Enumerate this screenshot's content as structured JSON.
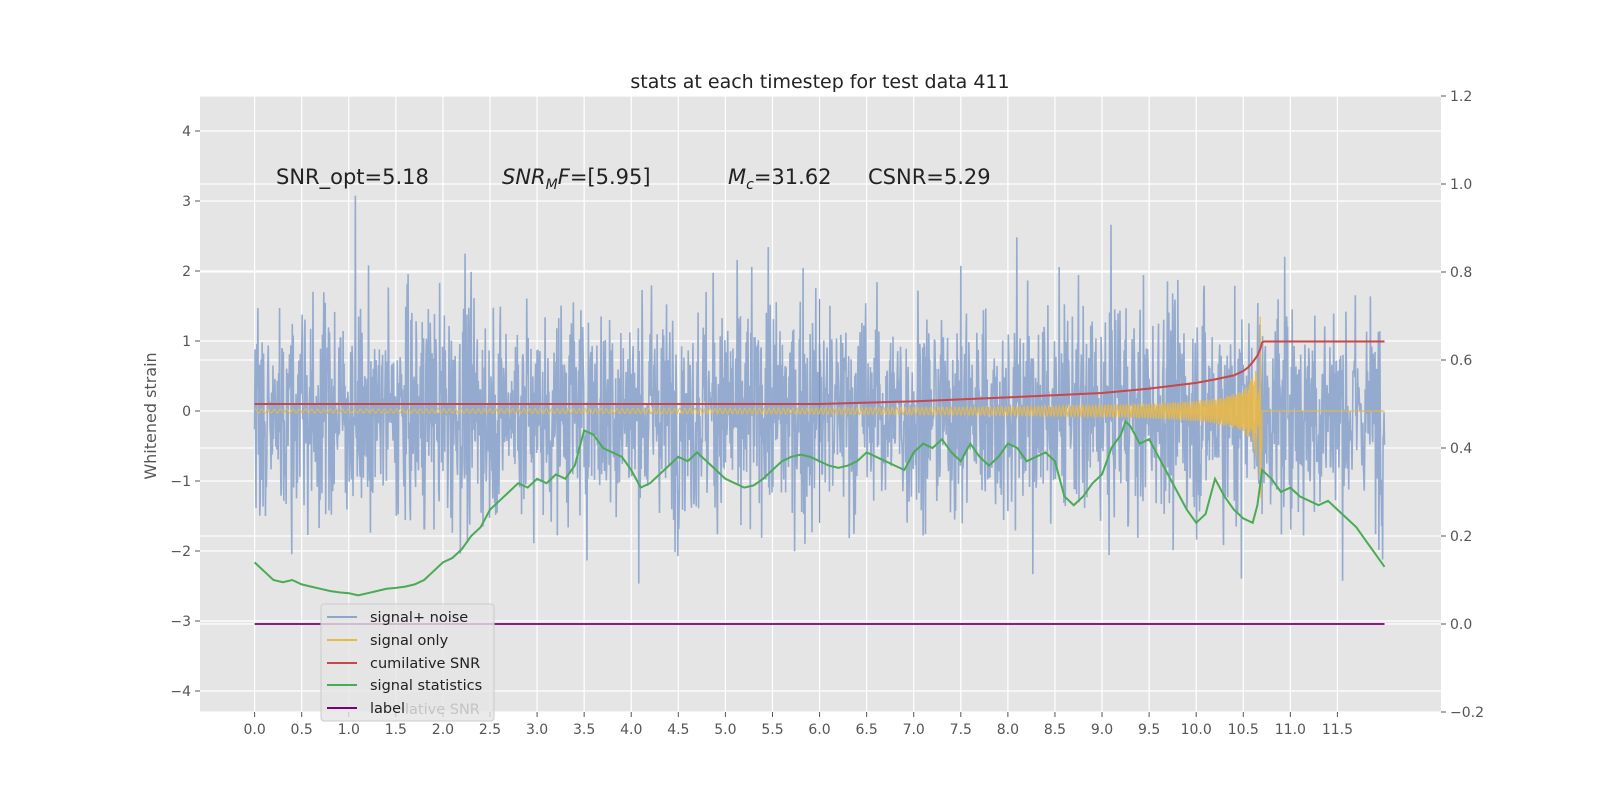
{
  "chart_data": {
    "type": "line",
    "title": "stats at each timestep for test data 411",
    "ylabel_left": "Whitened strain",
    "ylabel_right": "",
    "xlabel": "",
    "xlim": [
      -0.58,
      12.6
    ],
    "ylim_left": [
      -4.3,
      4.5
    ],
    "ylim_right": [
      -0.2,
      1.2
    ],
    "x_ticks": [
      "0.0",
      "0.5",
      "1.0",
      "1.5",
      "2.0",
      "2.5",
      "3.0",
      "3.5",
      "4.0",
      "4.5",
      "5.0",
      "5.5",
      "6.0",
      "6.5",
      "7.0",
      "7.5",
      "8.0",
      "8.5",
      "9.0",
      "9.5",
      "10.0",
      "10.5",
      "11.0",
      "11.5"
    ],
    "y_ticks_left": [
      "−4",
      "−3",
      "−2",
      "−1",
      "0",
      "1",
      "2",
      "3",
      "4"
    ],
    "y_ticks_right": [
      "−0.2",
      "0.0",
      "0.2",
      "0.4",
      "0.6",
      "0.8",
      "1.0",
      "1.2"
    ],
    "grid": true,
    "legend_position": "lower-left",
    "annotations": [
      {
        "text_pre": "SNR_opt=5.18",
        "text_math": "",
        "text_post": ""
      },
      {
        "text_pre": "",
        "text_math": "SNR",
        "text_sub": "M",
        "text_math2": "F",
        "text_post": "=[5.95]"
      },
      {
        "text_pre": "",
        "text_math": "M",
        "text_sub": "c",
        "text_post": "=31.62"
      },
      {
        "text_pre": "CSNR=5.29",
        "text_math": "",
        "text_post": ""
      }
    ],
    "legend": [
      {
        "label": "signal+ noise",
        "color": "#8fa6cc"
      },
      {
        "label": "signal only",
        "color": "#e8b84a"
      },
      {
        "label": "cumilative SNR",
        "color": "#c9464a"
      },
      {
        "label": "signal statistics",
        "color": "#4aaa55"
      },
      {
        "label": "label",
        "color": "#7a007a"
      }
    ],
    "legend_behind_text": "lative SNR",
    "series": [
      {
        "name": "signal+ noise",
        "axis": "left",
        "color": "#8fa6cc",
        "description": "dense whitened noise fluctuating roughly between -3.5 and 3.5 over x 0 to 12",
        "x_range": [
          0.0,
          12.0
        ],
        "envelope": [
          -2.6,
          2.6
        ]
      },
      {
        "name": "signal only",
        "axis": "left",
        "color": "#e8b84a",
        "description": "chirp growing from ~8.0 and peaking near x=10.7 then flat zero",
        "x_range": [
          0.0,
          12.0
        ],
        "peak_x": 10.7,
        "peak_amplitude": 1.35
      },
      {
        "name": "cumilative SNR",
        "axis": "right",
        "color": "#c9464a",
        "x": [
          0.0,
          6.0,
          7.0,
          8.0,
          9.0,
          9.5,
          10.0,
          10.2,
          10.4,
          10.5,
          10.55,
          10.6,
          10.65,
          10.68,
          10.7,
          10.72,
          11.0,
          12.0
        ],
        "values": [
          0.5,
          0.5,
          0.506,
          0.515,
          0.525,
          0.535,
          0.548,
          0.556,
          0.565,
          0.575,
          0.583,
          0.595,
          0.61,
          0.625,
          0.64,
          0.642,
          0.642,
          0.642
        ]
      },
      {
        "name": "signal statistics",
        "axis": "right",
        "color": "#4aaa55",
        "x": [
          0.0,
          0.1,
          0.2,
          0.3,
          0.4,
          0.5,
          0.6,
          0.7,
          0.8,
          0.9,
          1.0,
          1.1,
          1.2,
          1.3,
          1.4,
          1.5,
          1.6,
          1.7,
          1.8,
          1.9,
          2.0,
          2.1,
          2.2,
          2.3,
          2.4,
          2.5,
          2.6,
          2.7,
          2.8,
          2.9,
          3.0,
          3.1,
          3.2,
          3.3,
          3.4,
          3.5,
          3.6,
          3.7,
          3.8,
          3.9,
          4.0,
          4.1,
          4.2,
          4.3,
          4.4,
          4.5,
          4.6,
          4.7,
          4.8,
          4.9,
          5.0,
          5.1,
          5.2,
          5.3,
          5.4,
          5.5,
          5.6,
          5.7,
          5.8,
          5.9,
          6.0,
          6.1,
          6.2,
          6.3,
          6.4,
          6.5,
          6.6,
          6.7,
          6.8,
          6.9,
          7.0,
          7.1,
          7.2,
          7.3,
          7.4,
          7.5,
          7.6,
          7.7,
          7.8,
          7.9,
          8.0,
          8.1,
          8.2,
          8.3,
          8.4,
          8.5,
          8.6,
          8.7,
          8.8,
          8.9,
          9.0,
          9.1,
          9.2,
          9.25,
          9.3,
          9.4,
          9.5,
          9.6,
          9.7,
          9.8,
          9.9,
          10.0,
          10.1,
          10.2,
          10.3,
          10.4,
          10.5,
          10.6,
          10.65,
          10.7,
          10.8,
          10.9,
          11.0,
          11.1,
          11.2,
          11.3,
          11.4,
          11.5,
          11.6,
          11.7,
          11.8,
          11.9,
          12.0
        ],
        "values": [
          0.14,
          0.12,
          0.1,
          0.095,
          0.1,
          0.09,
          0.085,
          0.08,
          0.075,
          0.072,
          0.07,
          0.065,
          0.07,
          0.075,
          0.08,
          0.082,
          0.085,
          0.09,
          0.1,
          0.12,
          0.14,
          0.15,
          0.17,
          0.2,
          0.22,
          0.26,
          0.28,
          0.3,
          0.32,
          0.31,
          0.33,
          0.32,
          0.34,
          0.33,
          0.36,
          0.44,
          0.43,
          0.4,
          0.39,
          0.38,
          0.35,
          0.31,
          0.32,
          0.34,
          0.36,
          0.38,
          0.37,
          0.39,
          0.37,
          0.35,
          0.33,
          0.32,
          0.31,
          0.315,
          0.33,
          0.35,
          0.37,
          0.38,
          0.385,
          0.38,
          0.37,
          0.36,
          0.355,
          0.36,
          0.37,
          0.39,
          0.38,
          0.37,
          0.36,
          0.35,
          0.39,
          0.41,
          0.4,
          0.42,
          0.39,
          0.37,
          0.41,
          0.38,
          0.36,
          0.38,
          0.41,
          0.4,
          0.37,
          0.38,
          0.39,
          0.37,
          0.29,
          0.27,
          0.29,
          0.32,
          0.34,
          0.4,
          0.43,
          0.46,
          0.45,
          0.41,
          0.42,
          0.38,
          0.34,
          0.3,
          0.26,
          0.23,
          0.25,
          0.33,
          0.29,
          0.26,
          0.24,
          0.23,
          0.27,
          0.35,
          0.33,
          0.3,
          0.31,
          0.29,
          0.28,
          0.27,
          0.28,
          0.26,
          0.24,
          0.22,
          0.19,
          0.16,
          0.13
        ]
      },
      {
        "name": "label",
        "axis": "right",
        "color": "#7a007a",
        "x": [
          0.0,
          12.0
        ],
        "values": [
          0.0,
          0.0
        ]
      }
    ]
  }
}
